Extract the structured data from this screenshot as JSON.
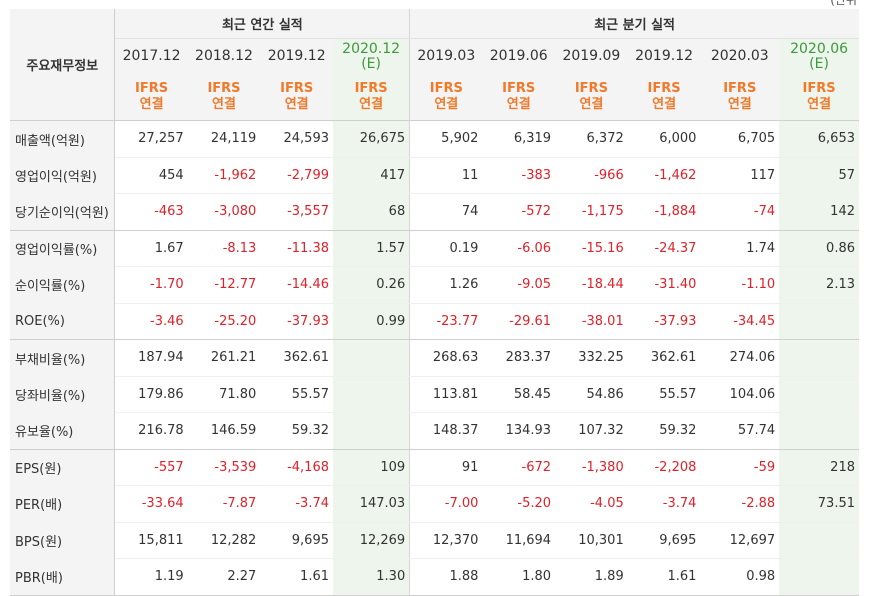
{
  "top_fragment": "(단위",
  "header": {
    "row_label_title": "주요재무정보",
    "annual_group": "최근 연간 실적",
    "quarterly_group": "최근 분기 실적",
    "columns": [
      {
        "period": "2017.12",
        "est": "",
        "ifrs": "IFRS",
        "basis": "연결"
      },
      {
        "period": "2018.12",
        "est": "",
        "ifrs": "IFRS",
        "basis": "연결"
      },
      {
        "period": "2019.12",
        "est": "",
        "ifrs": "IFRS",
        "basis": "연결"
      },
      {
        "period": "2020.12",
        "est": "(E)",
        "ifrs": "IFRS",
        "basis": "연결"
      },
      {
        "period": "2019.03",
        "est": "",
        "ifrs": "IFRS",
        "basis": "연결"
      },
      {
        "period": "2019.06",
        "est": "",
        "ifrs": "IFRS",
        "basis": "연결"
      },
      {
        "period": "2019.09",
        "est": "",
        "ifrs": "IFRS",
        "basis": "연결"
      },
      {
        "period": "2019.12",
        "est": "",
        "ifrs": "IFRS",
        "basis": "연결"
      },
      {
        "period": "2020.03",
        "est": "",
        "ifrs": "IFRS",
        "basis": "연결"
      },
      {
        "period": "2020.06",
        "est": "(E)",
        "ifrs": "IFRS",
        "basis": "연결"
      }
    ]
  },
  "rows": [
    {
      "label": "매출액(억원)",
      "values": [
        "27,257",
        "24,119",
        "24,593",
        "26,675",
        "5,902",
        "6,319",
        "6,372",
        "6,000",
        "6,705",
        "6,653"
      ]
    },
    {
      "label": "영업이익(억원)",
      "values": [
        "454",
        "-1,962",
        "-2,799",
        "417",
        "11",
        "-383",
        "-966",
        "-1,462",
        "117",
        "57"
      ]
    },
    {
      "label": "당기순이익(억원)",
      "values": [
        "-463",
        "-3,080",
        "-3,557",
        "68",
        "74",
        "-572",
        "-1,175",
        "-1,884",
        "-74",
        "142"
      ]
    },
    {
      "label": "영업이익률(%)",
      "values": [
        "1.67",
        "-8.13",
        "-11.38",
        "1.57",
        "0.19",
        "-6.06",
        "-15.16",
        "-24.37",
        "1.74",
        "0.86"
      ]
    },
    {
      "label": "순이익률(%)",
      "values": [
        "-1.70",
        "-12.77",
        "-14.46",
        "0.26",
        "1.26",
        "-9.05",
        "-18.44",
        "-31.40",
        "-1.10",
        "2.13"
      ]
    },
    {
      "label": "ROE(%)",
      "values": [
        "-3.46",
        "-25.20",
        "-37.93",
        "0.99",
        "-23.77",
        "-29.61",
        "-38.01",
        "-37.93",
        "-34.45",
        ""
      ]
    },
    {
      "label": "부채비율(%)",
      "values": [
        "187.94",
        "261.21",
        "362.61",
        "",
        "268.63",
        "283.37",
        "332.25",
        "362.61",
        "274.06",
        ""
      ]
    },
    {
      "label": "당좌비율(%)",
      "values": [
        "179.86",
        "71.80",
        "55.57",
        "",
        "113.81",
        "58.45",
        "54.86",
        "55.57",
        "104.06",
        ""
      ]
    },
    {
      "label": "유보율(%)",
      "values": [
        "216.78",
        "146.59",
        "59.32",
        "",
        "148.37",
        "134.93",
        "107.32",
        "59.32",
        "57.74",
        ""
      ]
    },
    {
      "label": "EPS(원)",
      "values": [
        "-557",
        "-3,539",
        "-4,168",
        "109",
        "91",
        "-672",
        "-1,380",
        "-2,208",
        "-59",
        "218"
      ]
    },
    {
      "label": "PER(배)",
      "values": [
        "-33.64",
        "-7.87",
        "-3.74",
        "147.03",
        "-7.00",
        "-5.20",
        "-4.05",
        "-3.74",
        "-2.88",
        "73.51"
      ]
    },
    {
      "label": "BPS(원)",
      "values": [
        "15,811",
        "12,282",
        "9,695",
        "12,269",
        "12,370",
        "11,694",
        "10,301",
        "9,695",
        "12,697",
        ""
      ]
    },
    {
      "label": "PBR(배)",
      "values": [
        "1.19",
        "2.27",
        "1.61",
        "1.30",
        "1.88",
        "1.80",
        "1.89",
        "1.61",
        "0.98",
        ""
      ]
    }
  ],
  "colors": {
    "negative": "#e0212a",
    "ifrs": "#f07a2a",
    "estimate": "#3b9a3b",
    "estimate_bg": "#f3f8f1"
  }
}
